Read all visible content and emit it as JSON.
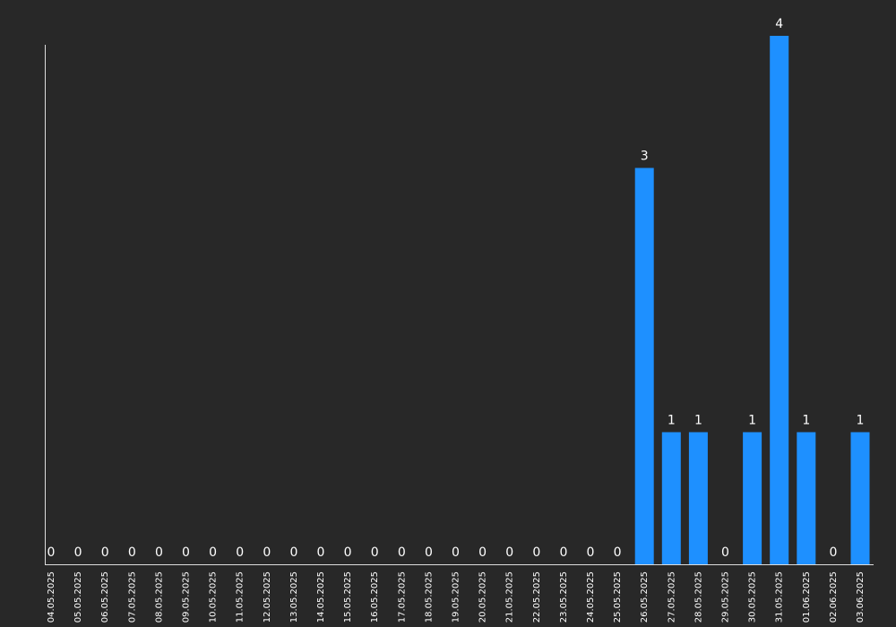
{
  "chart_data": {
    "type": "bar",
    "categories": [
      "04.05.2025",
      "05.05.2025",
      "06.05.2025",
      "07.05.2025",
      "08.05.2025",
      "09.05.2025",
      "10.05.2025",
      "11.05.2025",
      "12.05.2025",
      "13.05.2025",
      "14.05.2025",
      "15.05.2025",
      "16.05.2025",
      "17.05.2025",
      "18.05.2025",
      "19.05.2025",
      "20.05.2025",
      "21.05.2025",
      "22.05.2025",
      "23.05.2025",
      "24.05.2025",
      "25.05.2025",
      "26.05.2025",
      "27.05.2025",
      "28.05.2025",
      "29.05.2025",
      "30.05.2025",
      "31.05.2025",
      "01.06.2025",
      "02.06.2025",
      "03.06.2025"
    ],
    "values": [
      0,
      0,
      0,
      0,
      0,
      0,
      0,
      0,
      0,
      0,
      0,
      0,
      0,
      0,
      0,
      0,
      0,
      0,
      0,
      0,
      0,
      0,
      3,
      1,
      1,
      0,
      1,
      4,
      1,
      0,
      1
    ],
    "color": "#1e90ff",
    "ylim": [
      0,
      4
    ]
  }
}
